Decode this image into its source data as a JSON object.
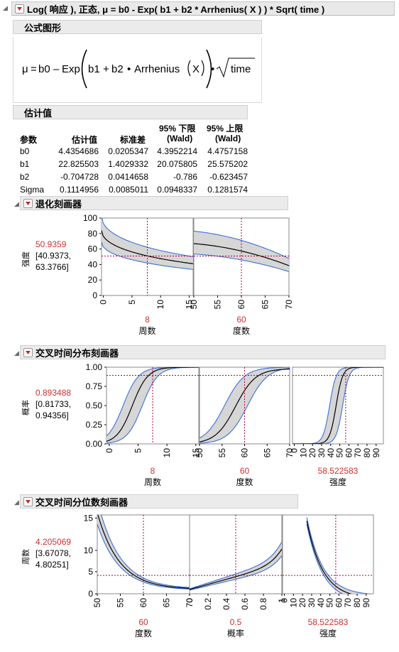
{
  "title": "Log( 响应 ), 正态, μ = b0 - Exp( b1 + b2 * Arrhenius( X ) ) * Sqrt( time )",
  "formula_section": {
    "title": "公式图形",
    "formula": {
      "mu": "μ",
      "eq": "=",
      "b0": "b0",
      "minus": "–",
      "exp": "Exp",
      "b1": "b1",
      "plus": "+",
      "b2": "b2",
      "dot": "•",
      "arr": "Arrhenius",
      "x": "X",
      "time": "time"
    }
  },
  "estimates": {
    "title": "估计值",
    "headers": [
      "参数",
      "估计值",
      "标准差",
      "95% 下限",
      "(Wald)",
      "95% 上限",
      "(Wald)"
    ],
    "rows": [
      [
        "b0",
        "4.4354686",
        "0.0205347",
        "4.3952214",
        "4.4757158"
      ],
      [
        "b1",
        "22.825503",
        "1.4029332",
        "20.075805",
        "25.575202"
      ],
      [
        "b2",
        "-0.704728",
        "0.0414658",
        "-0.786",
        "-0.623457"
      ],
      [
        "Sigma",
        "0.1114956",
        "0.0085011",
        "0.0948337",
        "0.1281574"
      ]
    ]
  },
  "profiler1": {
    "title": "退化刻画器",
    "ylabel": "强度",
    "value": "50.9359",
    "ci1": "[40.9373,",
    "ci2": "63.3766]",
    "yticks": [
      "100",
      "80",
      "60",
      "40",
      "20",
      "0"
    ],
    "panels": [
      {
        "xticks": [
          "0",
          "5",
          "10",
          "15"
        ],
        "xval": "8",
        "xlabel": "周数"
      },
      {
        "xticks": [
          "50",
          "55",
          "60",
          "65",
          "70"
        ],
        "xval": "60",
        "xlabel": "度数"
      }
    ]
  },
  "profiler2": {
    "title": "交叉时间分布刻画器",
    "ylabel": "概率",
    "value": "0.893488",
    "ci1": "[0.81733,",
    "ci2": "0.94356]",
    "yticks": [
      "1.00",
      "0.75",
      "0.50",
      "0.25",
      "0.00"
    ],
    "panels": [
      {
        "xticks": [
          "0",
          "5",
          "10",
          "15"
        ],
        "xval": "8",
        "xlabel": "周数"
      },
      {
        "xticks": [
          "50",
          "55",
          "60",
          "65",
          "70"
        ],
        "xval": "60",
        "xlabel": "度数"
      },
      {
        "xticks": [
          "0",
          "10",
          "20",
          "30",
          "40",
          "50",
          "60",
          "70",
          "80",
          "90"
        ],
        "xval": "58.522583",
        "xlabel": "强度"
      }
    ]
  },
  "profiler3": {
    "title": "交叉时间分位数刻画器",
    "ylabel": "周数",
    "value": "4.205069",
    "ci1": "[3.67078,",
    "ci2": "4.80251]",
    "yticks": [
      "15",
      "10",
      "5",
      "0"
    ],
    "panels": [
      {
        "xticks": [
          "50",
          "55",
          "60",
          "65",
          "70"
        ],
        "xval": "60",
        "xlabel": "度数"
      },
      {
        "xticks": [
          "0",
          "0.2",
          "0.4",
          "0.6",
          "0.8",
          "1"
        ],
        "xval": "0.5",
        "xlabel": "概率"
      },
      {
        "xticks": [
          "0",
          "10",
          "20",
          "30",
          "40",
          "50",
          "60",
          "70",
          "80",
          "90"
        ],
        "xval": "58.522583",
        "xlabel": "强度"
      }
    ]
  },
  "colors": {
    "curve": "#000000",
    "band_line": "#3b6fd6",
    "band_fill": "#d6d6d6",
    "crosshair": "#b0003a",
    "value_red": "#d32f2f"
  }
}
